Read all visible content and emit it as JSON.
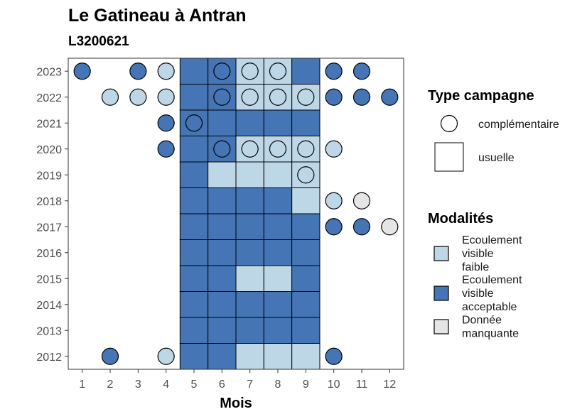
{
  "chart_data": {
    "type": "heatmap",
    "title": "Le Gatineau à Antran",
    "subtitle": "L3200621",
    "xlabel": "Mois",
    "x_ticks": [
      1,
      2,
      3,
      4,
      5,
      6,
      7,
      8,
      9,
      10,
      11,
      12
    ],
    "y_ticks": [
      2012,
      2013,
      2014,
      2015,
      2016,
      2017,
      2018,
      2019,
      2020,
      2021,
      2022,
      2023
    ],
    "xlim": [
      0.5,
      12.5
    ],
    "ylim": [
      2011.5,
      2023.5
    ],
    "colors": {
      "faible": "#bdd7e7",
      "acceptable": "#4575b4",
      "manquante": "#e5e5e5"
    },
    "legend_shape": {
      "title": "Type campagne",
      "entries": [
        {
          "label": "complémentaire",
          "shape": "circle"
        },
        {
          "label": "usuelle",
          "shape": "square"
        }
      ]
    },
    "legend_fill": {
      "title": "Modalités",
      "entries": [
        {
          "key": "faible",
          "lines": [
            "Ecoulement",
            "visible",
            "faible"
          ]
        },
        {
          "key": "acceptable",
          "lines": [
            "Ecoulement",
            "visible",
            "acceptable"
          ]
        },
        {
          "key": "manquante",
          "lines": [
            "Donnée",
            "manquante"
          ]
        }
      ]
    },
    "usuelle": [
      {
        "year": 2023,
        "month": 5,
        "m": "acceptable"
      },
      {
        "year": 2023,
        "month": 6,
        "m": "acceptable"
      },
      {
        "year": 2023,
        "month": 7,
        "m": "faible"
      },
      {
        "year": 2023,
        "month": 8,
        "m": "faible"
      },
      {
        "year": 2023,
        "month": 9,
        "m": "acceptable"
      },
      {
        "year": 2022,
        "month": 5,
        "m": "acceptable"
      },
      {
        "year": 2022,
        "month": 6,
        "m": "acceptable"
      },
      {
        "year": 2022,
        "month": 7,
        "m": "faible"
      },
      {
        "year": 2022,
        "month": 8,
        "m": "faible"
      },
      {
        "year": 2022,
        "month": 9,
        "m": "faible"
      },
      {
        "year": 2021,
        "month": 5,
        "m": "acceptable"
      },
      {
        "year": 2021,
        "month": 6,
        "m": "acceptable"
      },
      {
        "year": 2021,
        "month": 7,
        "m": "acceptable"
      },
      {
        "year": 2021,
        "month": 8,
        "m": "acceptable"
      },
      {
        "year": 2021,
        "month": 9,
        "m": "acceptable"
      },
      {
        "year": 2020,
        "month": 5,
        "m": "acceptable"
      },
      {
        "year": 2020,
        "month": 6,
        "m": "acceptable"
      },
      {
        "year": 2020,
        "month": 7,
        "m": "faible"
      },
      {
        "year": 2020,
        "month": 8,
        "m": "faible"
      },
      {
        "year": 2020,
        "month": 9,
        "m": "faible"
      },
      {
        "year": 2019,
        "month": 5,
        "m": "acceptable"
      },
      {
        "year": 2019,
        "month": 6,
        "m": "faible"
      },
      {
        "year": 2019,
        "month": 7,
        "m": "faible"
      },
      {
        "year": 2019,
        "month": 8,
        "m": "faible"
      },
      {
        "year": 2019,
        "month": 9,
        "m": "faible"
      },
      {
        "year": 2018,
        "month": 5,
        "m": "acceptable"
      },
      {
        "year": 2018,
        "month": 6,
        "m": "acceptable"
      },
      {
        "year": 2018,
        "month": 7,
        "m": "acceptable"
      },
      {
        "year": 2018,
        "month": 8,
        "m": "acceptable"
      },
      {
        "year": 2018,
        "month": 9,
        "m": "faible"
      },
      {
        "year": 2017,
        "month": 5,
        "m": "acceptable"
      },
      {
        "year": 2017,
        "month": 6,
        "m": "acceptable"
      },
      {
        "year": 2017,
        "month": 7,
        "m": "acceptable"
      },
      {
        "year": 2017,
        "month": 8,
        "m": "acceptable"
      },
      {
        "year": 2017,
        "month": 9,
        "m": "acceptable"
      },
      {
        "year": 2016,
        "month": 5,
        "m": "acceptable"
      },
      {
        "year": 2016,
        "month": 6,
        "m": "acceptable"
      },
      {
        "year": 2016,
        "month": 7,
        "m": "acceptable"
      },
      {
        "year": 2016,
        "month": 8,
        "m": "acceptable"
      },
      {
        "year": 2016,
        "month": 9,
        "m": "acceptable"
      },
      {
        "year": 2015,
        "month": 5,
        "m": "acceptable"
      },
      {
        "year": 2015,
        "month": 6,
        "m": "acceptable"
      },
      {
        "year": 2015,
        "month": 7,
        "m": "faible"
      },
      {
        "year": 2015,
        "month": 8,
        "m": "faible"
      },
      {
        "year": 2015,
        "month": 9,
        "m": "acceptable"
      },
      {
        "year": 2014,
        "month": 5,
        "m": "acceptable"
      },
      {
        "year": 2014,
        "month": 6,
        "m": "acceptable"
      },
      {
        "year": 2014,
        "month": 7,
        "m": "acceptable"
      },
      {
        "year": 2014,
        "month": 8,
        "m": "acceptable"
      },
      {
        "year": 2014,
        "month": 9,
        "m": "acceptable"
      },
      {
        "year": 2013,
        "month": 5,
        "m": "acceptable"
      },
      {
        "year": 2013,
        "month": 6,
        "m": "acceptable"
      },
      {
        "year": 2013,
        "month": 7,
        "m": "acceptable"
      },
      {
        "year": 2013,
        "month": 8,
        "m": "acceptable"
      },
      {
        "year": 2013,
        "month": 9,
        "m": "acceptable"
      },
      {
        "year": 2012,
        "month": 5,
        "m": "acceptable"
      },
      {
        "year": 2012,
        "month": 6,
        "m": "acceptable"
      },
      {
        "year": 2012,
        "month": 7,
        "m": "faible"
      },
      {
        "year": 2012,
        "month": 8,
        "m": "faible"
      },
      {
        "year": 2012,
        "month": 9,
        "m": "faible"
      }
    ],
    "complementaire": [
      {
        "year": 2023,
        "month": 1,
        "m": "acceptable"
      },
      {
        "year": 2023,
        "month": 3,
        "m": "acceptable"
      },
      {
        "year": 2023,
        "month": 4,
        "m": "faible"
      },
      {
        "year": 2023,
        "month": 6,
        "m": "acceptable"
      },
      {
        "year": 2023,
        "month": 7,
        "m": "faible"
      },
      {
        "year": 2023,
        "month": 8,
        "m": "faible"
      },
      {
        "year": 2023,
        "month": 10,
        "m": "acceptable"
      },
      {
        "year": 2023,
        "month": 11,
        "m": "acceptable"
      },
      {
        "year": 2022,
        "month": 2,
        "m": "faible"
      },
      {
        "year": 2022,
        "month": 3,
        "m": "faible"
      },
      {
        "year": 2022,
        "month": 4,
        "m": "faible"
      },
      {
        "year": 2022,
        "month": 6,
        "m": "acceptable"
      },
      {
        "year": 2022,
        "month": 7,
        "m": "faible"
      },
      {
        "year": 2022,
        "month": 8,
        "m": "faible"
      },
      {
        "year": 2022,
        "month": 9,
        "m": "faible"
      },
      {
        "year": 2022,
        "month": 10,
        "m": "acceptable"
      },
      {
        "year": 2022,
        "month": 11,
        "m": "acceptable"
      },
      {
        "year": 2022,
        "month": 12,
        "m": "acceptable"
      },
      {
        "year": 2021,
        "month": 4,
        "m": "acceptable"
      },
      {
        "year": 2021,
        "month": 5,
        "m": "acceptable"
      },
      {
        "year": 2020,
        "month": 4,
        "m": "acceptable"
      },
      {
        "year": 2020,
        "month": 6,
        "m": "acceptable"
      },
      {
        "year": 2020,
        "month": 7,
        "m": "faible"
      },
      {
        "year": 2020,
        "month": 8,
        "m": "faible"
      },
      {
        "year": 2020,
        "month": 9,
        "m": "faible"
      },
      {
        "year": 2020,
        "month": 10,
        "m": "faible"
      },
      {
        "year": 2019,
        "month": 9,
        "m": "faible"
      },
      {
        "year": 2018,
        "month": 10,
        "m": "faible"
      },
      {
        "year": 2018,
        "month": 11,
        "m": "manquante"
      },
      {
        "year": 2017,
        "month": 10,
        "m": "acceptable"
      },
      {
        "year": 2017,
        "month": 11,
        "m": "acceptable"
      },
      {
        "year": 2017,
        "month": 12,
        "m": "manquante"
      },
      {
        "year": 2012,
        "month": 2,
        "m": "acceptable"
      },
      {
        "year": 2012,
        "month": 4,
        "m": "faible"
      },
      {
        "year": 2012,
        "month": 10,
        "m": "acceptable"
      }
    ]
  }
}
